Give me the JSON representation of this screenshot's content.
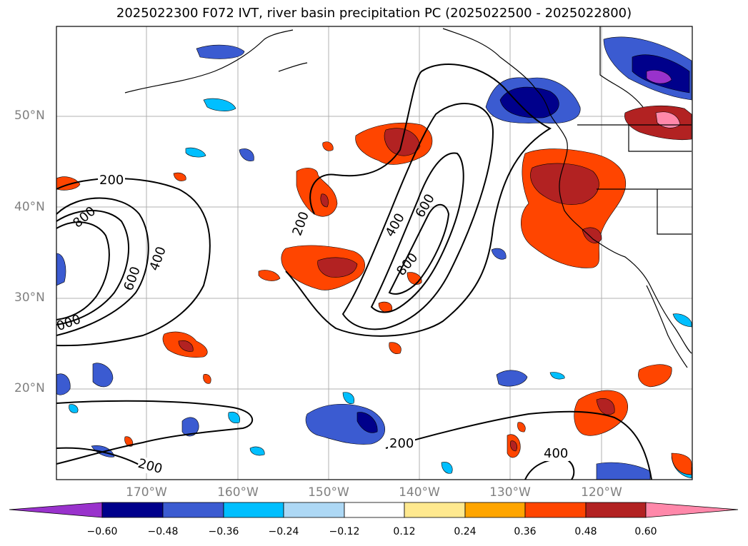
{
  "title": "2025022300 F072 IVT, river basin precipitation PC (2025022500 - 2025022800)",
  "map": {
    "lat_labels": [
      "50°N",
      "40°N",
      "30°N",
      "20°N"
    ],
    "lon_labels": [
      "170°W",
      "160°W",
      "150°W",
      "140°W",
      "130°W",
      "120°W"
    ],
    "contour_labels": [
      "200",
      "800",
      "400",
      "600",
      "000",
      "200",
      "400",
      "600",
      "800",
      "200",
      "200",
      "400"
    ]
  },
  "colorbar": {
    "ticks": [
      "−0.60",
      "−0.48",
      "−0.36",
      "−0.24",
      "−0.12",
      "0.12",
      "0.24",
      "0.36",
      "0.48",
      "0.60"
    ],
    "colors": [
      "#9932cc",
      "#00008b",
      "#3b5bd1",
      "#00bfff",
      "#add8f5",
      "#ffffff",
      "#ffe98f",
      "#ffa500",
      "#ff4500",
      "#b22222",
      "#ff88aa"
    ]
  }
}
